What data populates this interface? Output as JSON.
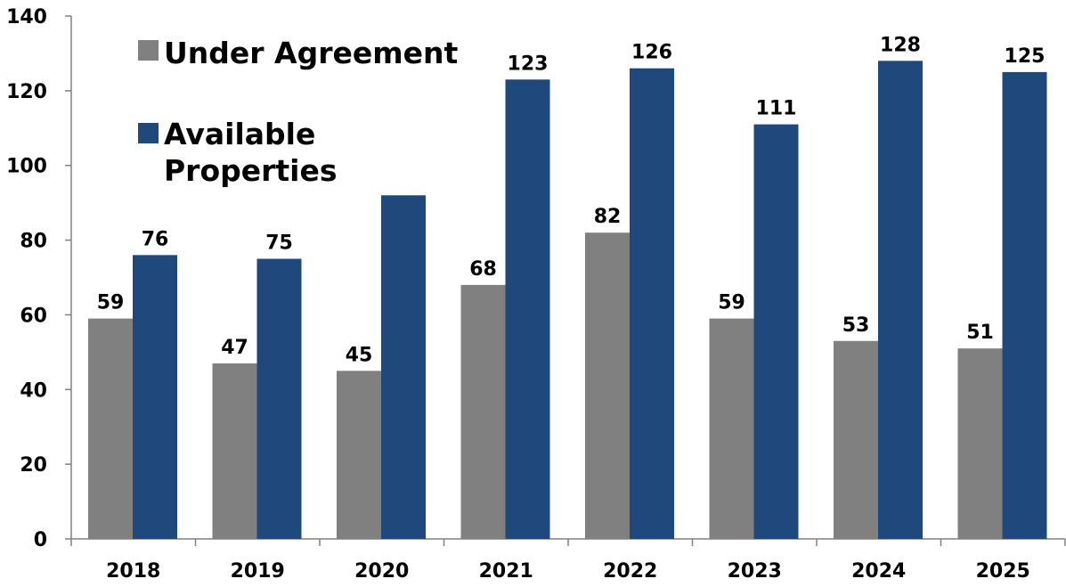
{
  "chart_data": {
    "type": "bar",
    "title": "",
    "xlabel": "",
    "ylabel": "",
    "ylim": [
      0,
      140
    ],
    "yticks": [
      0,
      20,
      40,
      60,
      80,
      100,
      120,
      140
    ],
    "grid": false,
    "categories": [
      "2018",
      "2019",
      "2020",
      "2021",
      "2022",
      "2023",
      "2024",
      "2025"
    ],
    "series": [
      {
        "name": "Under Agreement",
        "color": "#808080",
        "values": [
          59,
          47,
          45,
          68,
          82,
          59,
          53,
          51
        ],
        "data_labels": [
          "59",
          "47",
          "45",
          "68",
          "82",
          "59",
          "53",
          "51"
        ]
      },
      {
        "name": "Available Properties",
        "legend_lines": [
          "Available",
          "Properties"
        ],
        "color": "#1f497d",
        "values": [
          76,
          75,
          92,
          123,
          126,
          111,
          128,
          125
        ],
        "data_labels": [
          "76",
          "75",
          null,
          "123",
          "126",
          "111",
          "128",
          "125"
        ]
      }
    ],
    "legend_position": "top-left"
  }
}
